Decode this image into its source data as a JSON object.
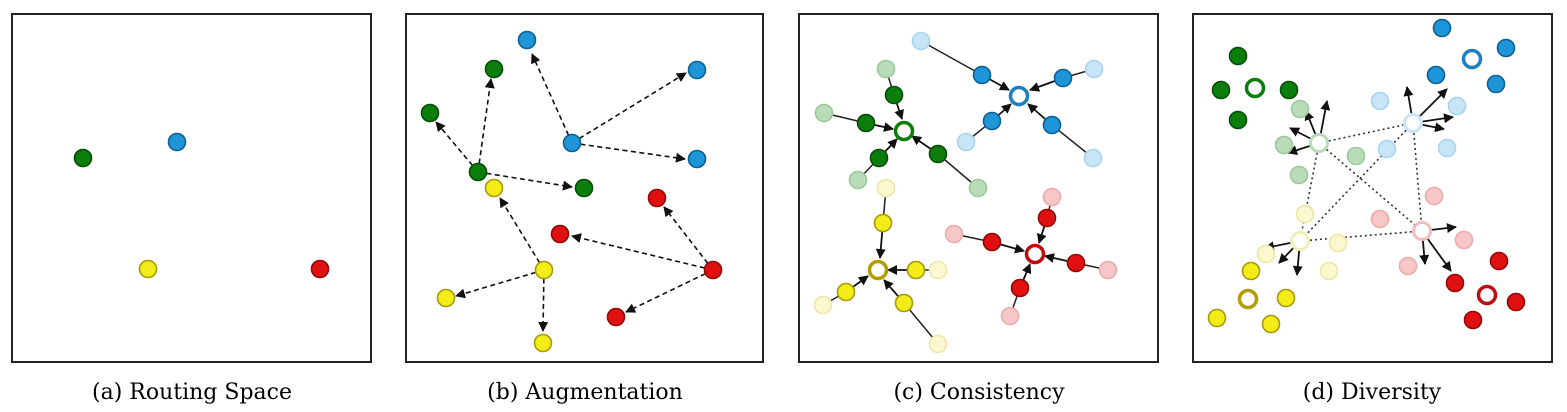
{
  "colors": {
    "green": "#0a7d0a",
    "blue": "#1e95d9",
    "yellow": "#f4ec18",
    "red": "#e01010",
    "frame": "#222222"
  },
  "panels": [
    {
      "id": "a",
      "caption": "(a)  Routing Space"
    },
    {
      "id": "b",
      "caption": "(b)  Augmentation"
    },
    {
      "id": "c",
      "caption": "(c)  Consistency"
    },
    {
      "id": "d",
      "caption": "(d)  Diversity"
    }
  ]
}
